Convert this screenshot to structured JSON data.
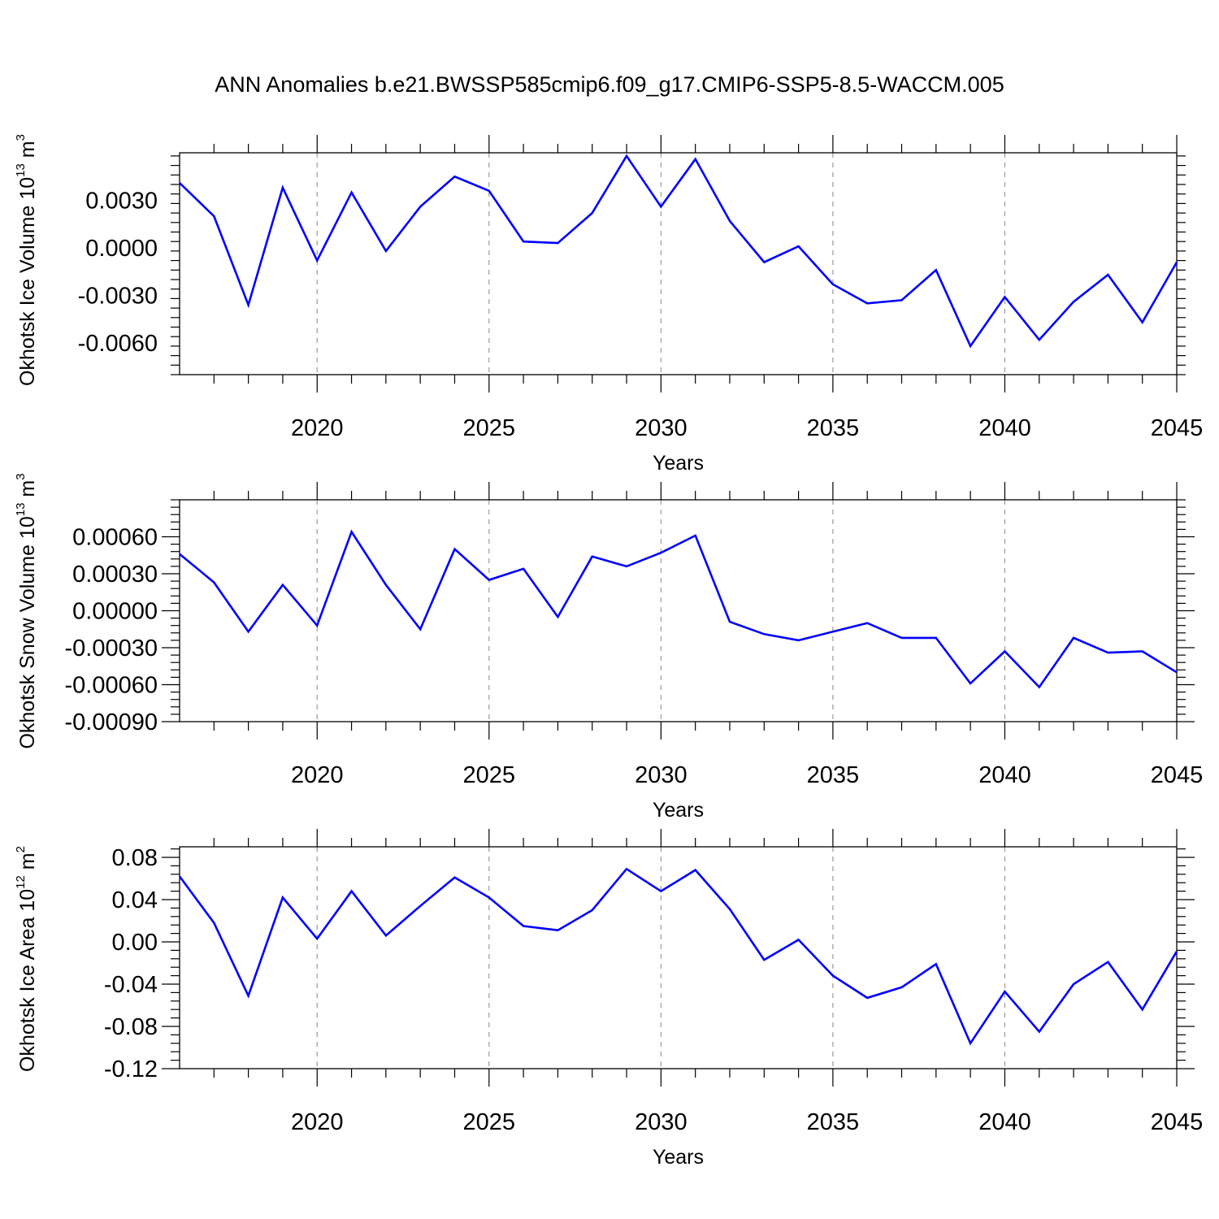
{
  "title": "ANN Anomalies b.e21.BWSSP585cmip6.f09_g17.CMIP6-SSP5-8.5-WACCM.005",
  "colors": {
    "line": "#0000ff",
    "axis": "#000000",
    "grid": "#9a9a9a"
  },
  "chart_data": [
    {
      "type": "line",
      "xlabel": "Years",
      "ylabel_main": "Okhotsk Ice Volume 10",
      "ylabel_exp": "13",
      "ylabel_unit": " m",
      "ylabel_unit_exp": "3",
      "xlim": [
        2016,
        2045
      ],
      "ylim": [
        -0.008,
        0.006
      ],
      "x_ticks": [
        "2020",
        "2025",
        "2030",
        "2035",
        "2040",
        "2045"
      ],
      "x_tick_values": [
        2020,
        2025,
        2030,
        2035,
        2040,
        2045
      ],
      "y_ticks": [
        "0.0030",
        "0.0000",
        "-0.0030",
        "-0.0060"
      ],
      "y_tick_values": [
        0.003,
        0.0,
        -0.003,
        -0.006
      ],
      "x": [
        2016,
        2017,
        2018,
        2019,
        2020,
        2021,
        2022,
        2023,
        2024,
        2025,
        2026,
        2027,
        2028,
        2029,
        2030,
        2031,
        2032,
        2033,
        2034,
        2035,
        2036,
        2037,
        2038,
        2039,
        2040,
        2041,
        2042,
        2043,
        2044,
        2045
      ],
      "series": [
        {
          "name": "Okhotsk Ice Volume",
          "values": [
            0.0041,
            0.002,
            -0.0036,
            0.0038,
            -0.0008,
            0.0035,
            -0.0002,
            0.0026,
            0.0045,
            0.0036,
            0.0004,
            0.0003,
            0.0022,
            0.0058,
            0.0026,
            0.0056,
            0.0017,
            -0.0009,
            0.0001,
            -0.0023,
            -0.0035,
            -0.0033,
            -0.0014,
            -0.0062,
            -0.0031,
            -0.0058,
            -0.0034,
            -0.0017,
            -0.0047,
            -0.0009
          ]
        }
      ]
    },
    {
      "type": "line",
      "xlabel": "Years",
      "ylabel_main": "Okhotsk Snow Volume 10",
      "ylabel_exp": "13",
      "ylabel_unit": " m",
      "ylabel_unit_exp": "3",
      "xlim": [
        2016,
        2045
      ],
      "ylim": [
        -0.0009,
        0.0009
      ],
      "x_ticks": [
        "2020",
        "2025",
        "2030",
        "2035",
        "2040",
        "2045"
      ],
      "x_tick_values": [
        2020,
        2025,
        2030,
        2035,
        2040,
        2045
      ],
      "y_ticks": [
        "0.00060",
        "0.00030",
        "0.00000",
        "-0.00030",
        "-0.00060",
        "-0.00090"
      ],
      "y_tick_values": [
        0.0006,
        0.0003,
        0.0,
        -0.0003,
        -0.0006,
        -0.0009
      ],
      "x": [
        2016,
        2017,
        2018,
        2019,
        2020,
        2021,
        2022,
        2023,
        2024,
        2025,
        2026,
        2027,
        2028,
        2029,
        2030,
        2031,
        2032,
        2033,
        2034,
        2035,
        2036,
        2037,
        2038,
        2039,
        2040,
        2041,
        2042,
        2043,
        2044,
        2045
      ],
      "series": [
        {
          "name": "Okhotsk Snow Volume",
          "values": [
            0.00046,
            0.00023,
            -0.00017,
            0.00021,
            -0.00012,
            0.00064,
            0.00021,
            -0.00015,
            0.0005,
            0.00025,
            0.00034,
            -5e-05,
            0.00044,
            0.00036,
            0.00047,
            0.00061,
            -9e-05,
            -0.00019,
            -0.00024,
            -0.00017,
            -0.0001,
            -0.00022,
            -0.00022,
            -0.00059,
            -0.00033,
            -0.00062,
            -0.00022,
            -0.00034,
            -0.00033,
            -0.0005
          ]
        }
      ]
    },
    {
      "type": "line",
      "xlabel": "Years",
      "ylabel_main": "Okhotsk Ice Area 10",
      "ylabel_exp": "12",
      "ylabel_unit": " m",
      "ylabel_unit_exp": "2",
      "xlim": [
        2016,
        2045
      ],
      "ylim": [
        -0.12,
        0.09
      ],
      "x_ticks": [
        "2020",
        "2025",
        "2030",
        "2035",
        "2040",
        "2045"
      ],
      "x_tick_values": [
        2020,
        2025,
        2030,
        2035,
        2040,
        2045
      ],
      "y_ticks": [
        "0.08",
        "0.04",
        "0.00",
        "-0.04",
        "-0.08",
        "-0.12"
      ],
      "y_tick_values": [
        0.08,
        0.04,
        0.0,
        -0.04,
        -0.08,
        -0.12
      ],
      "x": [
        2016,
        2017,
        2018,
        2019,
        2020,
        2021,
        2022,
        2023,
        2024,
        2025,
        2026,
        2027,
        2028,
        2029,
        2030,
        2031,
        2032,
        2033,
        2034,
        2035,
        2036,
        2037,
        2038,
        2039,
        2040,
        2041,
        2042,
        2043,
        2044,
        2045
      ],
      "series": [
        {
          "name": "Okhotsk Ice Area",
          "values": [
            0.062,
            0.018,
            -0.051,
            0.042,
            0.003,
            0.048,
            0.006,
            0.034,
            0.061,
            0.042,
            0.015,
            0.011,
            0.03,
            0.069,
            0.048,
            0.068,
            0.031,
            -0.017,
            0.002,
            -0.032,
            -0.053,
            -0.043,
            -0.021,
            -0.096,
            -0.047,
            -0.085,
            -0.04,
            -0.019,
            -0.064,
            -0.009
          ]
        }
      ]
    }
  ]
}
